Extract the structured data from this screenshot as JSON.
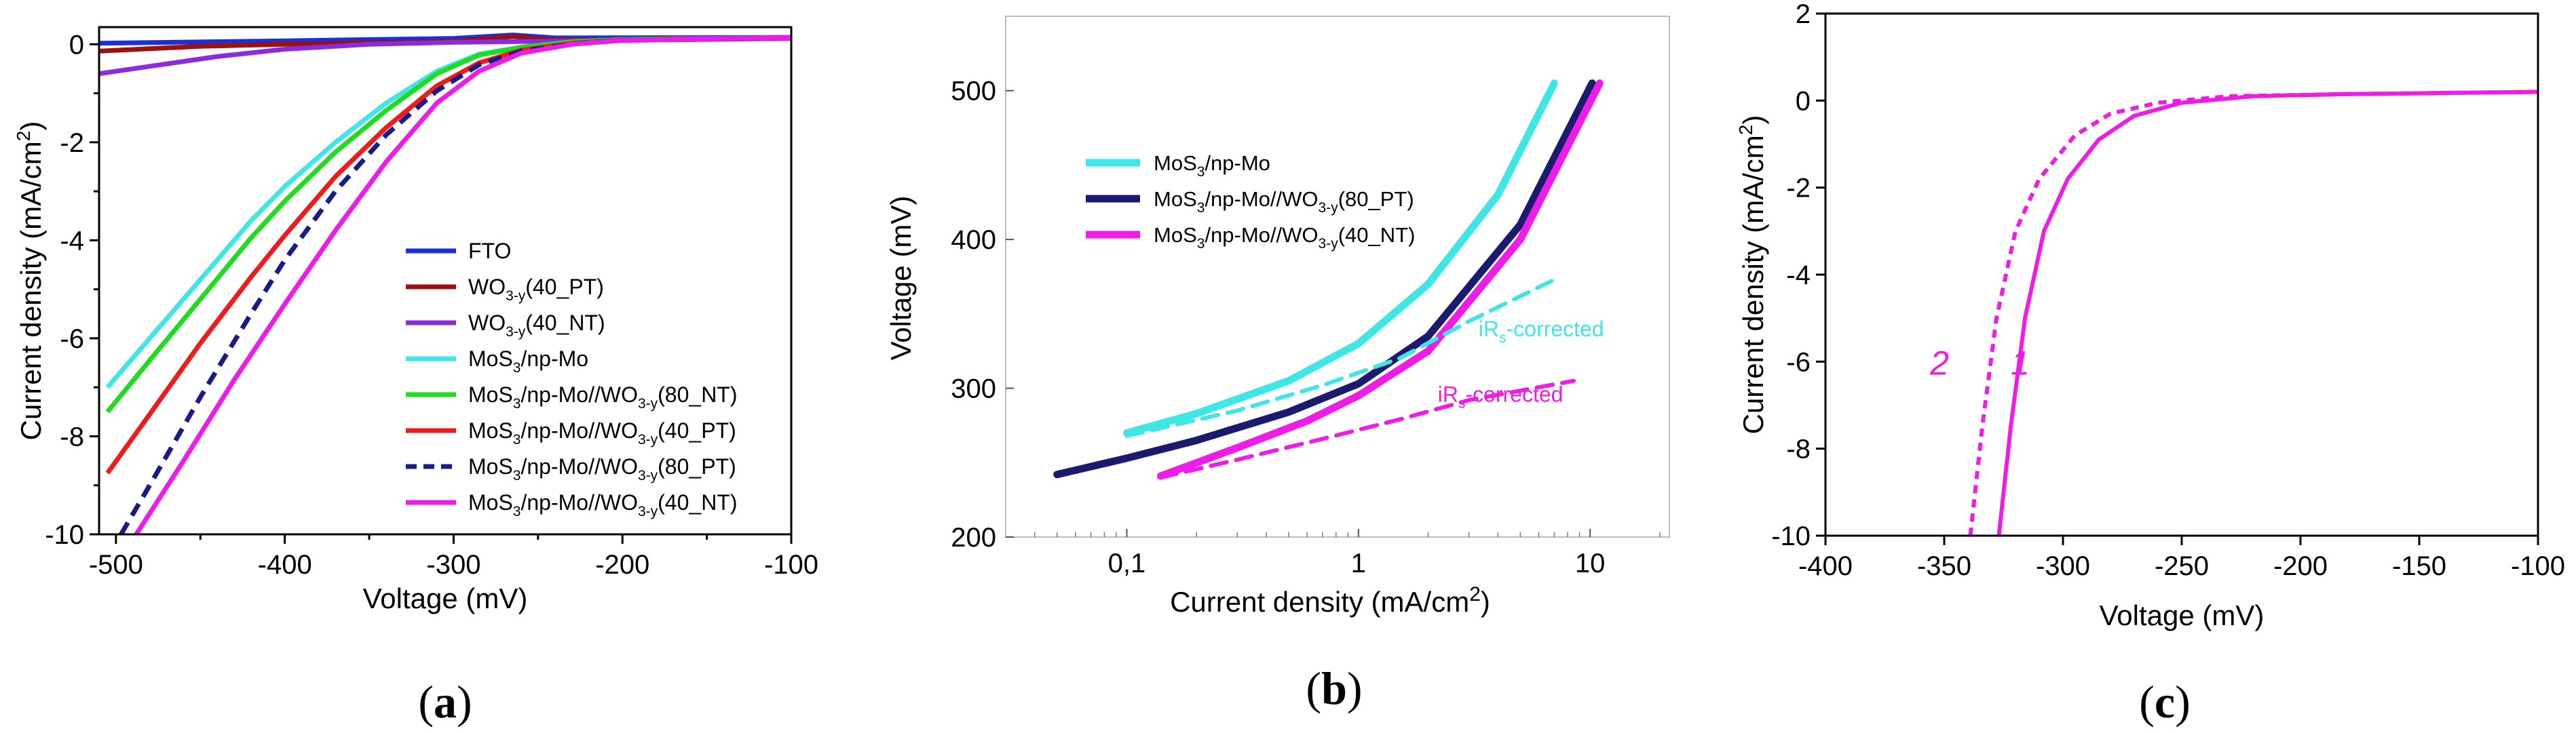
{
  "panel_labels": [
    "(a)",
    "(b)",
    "(c)"
  ],
  "chart_data": [
    {
      "type": "line",
      "panel": "(a)",
      "xlabel": "Voltage (mV)",
      "ylabel": "Current density (mA/cm²)",
      "xlim": [
        -510,
        -100
      ],
      "ylim": [
        -10,
        0.35
      ],
      "xticks": [
        -500,
        -400,
        -300,
        -200,
        -100
      ],
      "yticks": [
        0,
        -2,
        -4,
        -6,
        -8,
        -10
      ],
      "xtick_labels": [
        "-500",
        "-400",
        "-300",
        "-200",
        "-100"
      ],
      "ytick_labels": [
        "0",
        "-2",
        "-4",
        "-6",
        "-8",
        "-10"
      ],
      "legend_location": "right",
      "series": [
        {
          "name": "FTO",
          "base": "FTO",
          "sub": "",
          "tail": "",
          "color": "#1c2fd8",
          "dash": false,
          "points": [
            [
              -510,
              0.02
            ],
            [
              -400,
              0.07
            ],
            [
              -300,
              0.12
            ],
            [
              -265,
              0.19
            ],
            [
              -240,
              0.13
            ],
            [
              -100,
              0.14
            ]
          ]
        },
        {
          "name": "WO3-y(40_PT)",
          "base": "WO",
          "sub": "3-y",
          "tail": "(40_PT)",
          "color": "#9c1010",
          "dash": false,
          "points": [
            [
              -510,
              -0.14
            ],
            [
              -450,
              -0.04
            ],
            [
              -400,
              0.0
            ],
            [
              -300,
              0.06
            ],
            [
              -265,
              0.16
            ],
            [
              -240,
              0.08
            ],
            [
              -100,
              0.14
            ]
          ]
        },
        {
          "name": "WO3-y(40_NT)",
          "base": "WO",
          "sub": "3-y",
          "tail": "(40_NT)",
          "color": "#8a2be2",
          "dash": false,
          "points": [
            [
              -510,
              -0.6
            ],
            [
              -480,
              -0.45
            ],
            [
              -440,
              -0.25
            ],
            [
              -400,
              -0.1
            ],
            [
              -350,
              0.0
            ],
            [
              -300,
              0.04
            ],
            [
              -200,
              0.08
            ],
            [
              -100,
              0.12
            ]
          ]
        },
        {
          "name": "MoS3/np-Mo",
          "base": "MoS",
          "sub": "3",
          "tail": "/np-Mo",
          "color": "#3fe6e6",
          "dash": false,
          "points": [
            [
              -505,
              -7.0
            ],
            [
              -480,
              -6.0
            ],
            [
              -450,
              -4.8
            ],
            [
              -420,
              -3.6
            ],
            [
              -400,
              -2.9
            ],
            [
              -370,
              -2.0
            ],
            [
              -340,
              -1.2
            ],
            [
              -310,
              -0.55
            ],
            [
              -285,
              -0.2
            ],
            [
              -260,
              -0.06
            ],
            [
              -230,
              0.05
            ],
            [
              -200,
              0.1
            ],
            [
              -100,
              0.14
            ]
          ]
        },
        {
          "name": "MoS3/np-Mo//WO3-y(80_NT)",
          "base": "MoS",
          "sub": "3",
          "tail": "/np-Mo//WO",
          "sub2": "3-y",
          "tail2": "(80_NT)",
          "color": "#1fdc1f",
          "dash": false,
          "points": [
            [
              -505,
              -7.5
            ],
            [
              -480,
              -6.45
            ],
            [
              -450,
              -5.2
            ],
            [
              -420,
              -3.95
            ],
            [
              -400,
              -3.2
            ],
            [
              -370,
              -2.2
            ],
            [
              -340,
              -1.35
            ],
            [
              -310,
              -0.6
            ],
            [
              -285,
              -0.22
            ],
            [
              -260,
              -0.06
            ],
            [
              -230,
              0.05
            ],
            [
              -200,
              0.1
            ],
            [
              -100,
              0.14
            ]
          ]
        },
        {
          "name": "MoS3/np-Mo//WO3-y(40_PT)",
          "base": "MoS",
          "sub": "3",
          "tail": "/np-Mo//WO",
          "sub2": "3-y",
          "tail2": "(40_PT)",
          "color": "#ee1c1c",
          "dash": false,
          "points": [
            [
              -505,
              -8.75
            ],
            [
              -480,
              -7.55
            ],
            [
              -450,
              -6.1
            ],
            [
              -420,
              -4.75
            ],
            [
              -400,
              -3.9
            ],
            [
              -370,
              -2.7
            ],
            [
              -340,
              -1.7
            ],
            [
              -310,
              -0.85
            ],
            [
              -285,
              -0.38
            ],
            [
              -260,
              -0.12
            ],
            [
              -230,
              0.02
            ],
            [
              -200,
              0.09
            ],
            [
              -100,
              0.14
            ]
          ]
        },
        {
          "name": "MoS3/np-Mo//WO3-y(80_PT)",
          "base": "MoS",
          "sub": "3",
          "tail": "/np-Mo//WO",
          "sub2": "3-y",
          "tail2": "(80_PT)",
          "color": "#1a1a8a",
          "dash": true,
          "points": [
            [
              -497,
              -10.0
            ],
            [
              -480,
              -9.0
            ],
            [
              -450,
              -7.2
            ],
            [
              -420,
              -5.5
            ],
            [
              -400,
              -4.4
            ],
            [
              -370,
              -3.0
            ],
            [
              -340,
              -1.85
            ],
            [
              -310,
              -0.95
            ],
            [
              -285,
              -0.42
            ],
            [
              -260,
              -0.14
            ],
            [
              -230,
              0.01
            ],
            [
              -200,
              0.08
            ],
            [
              -100,
              0.14
            ]
          ]
        },
        {
          "name": "MoS3/np-Mo//WO3-y(40_NT)",
          "base": "MoS",
          "sub": "3",
          "tail": "/np-Mo//WO",
          "sub2": "3-y",
          "tail2": "(40_NT)",
          "color": "#ee1ce6",
          "dash": false,
          "points": [
            [
              -488,
              -10.0
            ],
            [
              -460,
              -8.5
            ],
            [
              -430,
              -6.85
            ],
            [
              -400,
              -5.3
            ],
            [
              -370,
              -3.8
            ],
            [
              -340,
              -2.4
            ],
            [
              -310,
              -1.2
            ],
            [
              -285,
              -0.55
            ],
            [
              -260,
              -0.18
            ],
            [
              -230,
              0.0
            ],
            [
              -200,
              0.08
            ],
            [
              -100,
              0.14
            ]
          ]
        }
      ]
    },
    {
      "type": "line",
      "panel": "(b)",
      "xscale": "log",
      "xlabel": "Current density (mA/cm²)",
      "ylabel": "Voltage (mV)",
      "xlim": [
        0.03,
        22
      ],
      "ylim": [
        200,
        550
      ],
      "xticks": [
        0.1,
        1,
        10
      ],
      "xtick_labels": [
        "0,1",
        "1",
        "10"
      ],
      "yticks": [
        200,
        300,
        400,
        500
      ],
      "ytick_labels": [
        "200",
        "300",
        "400",
        "500"
      ],
      "legend_location": "top-left",
      "series": [
        {
          "name": "MoS3/np-Mo",
          "base": "MoS",
          "sub": "3",
          "tail": "/np-Mo",
          "color": "#3fe6e6",
          "dash": false,
          "in_legend": true,
          "points": [
            [
              0.1,
              270
            ],
            [
              0.2,
              283
            ],
            [
              0.5,
              305
            ],
            [
              1,
              330
            ],
            [
              2,
              370
            ],
            [
              4,
              430
            ],
            [
              7,
              505
            ]
          ]
        },
        {
          "name": "MoS3/np-Mo//WO3-y(80_PT)",
          "base": "MoS",
          "sub": "3",
          "tail": "/np-Mo//WO",
          "sub2": "3-y",
          "tail2": "(80_PT)",
          "color": "#1a1a6e",
          "dash": false,
          "in_legend": true,
          "points": [
            [
              0.05,
              242
            ],
            [
              0.1,
              253
            ],
            [
              0.2,
              265
            ],
            [
              0.5,
              284
            ],
            [
              1,
              303
            ],
            [
              2,
              335
            ],
            [
              5,
              410
            ],
            [
              10.2,
              505
            ]
          ]
        },
        {
          "name": "MoS3/np-Mo//WO3-y(40_NT)",
          "base": "MoS",
          "sub": "3",
          "tail": "/np-Mo//WO",
          "sub2": "3-y",
          "tail2": "(40_NT)",
          "color": "#ee1ce6",
          "dash": false,
          "in_legend": true,
          "points": [
            [
              0.14,
              241
            ],
            [
              0.3,
              260
            ],
            [
              0.6,
              278
            ],
            [
              1,
              295
            ],
            [
              2,
              325
            ],
            [
              5,
              400
            ],
            [
              11,
              505
            ]
          ]
        },
        {
          "name": "MoS3/np-Mo iRs-corrected",
          "color": "#3fe6e6",
          "dash": true,
          "in_legend": false,
          "points": [
            [
              0.1,
              268
            ],
            [
              0.3,
              285
            ],
            [
              0.7,
              302
            ],
            [
              1.5,
              320
            ],
            [
              3,
              345
            ],
            [
              7,
              373
            ]
          ]
        },
        {
          "name": "MoS3/np-Mo//WO3-y(40_NT) iRs-corrected",
          "color": "#ee1ce6",
          "dash": true,
          "in_legend": false,
          "points": [
            [
              0.14,
              240
            ],
            [
              0.3,
              252
            ],
            [
              0.7,
              266
            ],
            [
              1.5,
              279
            ],
            [
              3,
              292
            ],
            [
              8.5,
              305
            ]
          ]
        }
      ],
      "annotations": [
        {
          "text_main": "iR",
          "text_sub": "s",
          "text_tail": "-corrected",
          "color": "#3fe6e6",
          "x": 3.3,
          "y": 335
        },
        {
          "text_main": "iR",
          "text_sub": "s",
          "text_tail": "-corrected",
          "color": "#ee1ce6",
          "x": 2.2,
          "y": 291
        }
      ]
    },
    {
      "type": "line",
      "panel": "(c)",
      "xlabel": "Voltage (mV)",
      "ylabel": "Current density (mA/cm²)",
      "xlim": [
        -400,
        -100
      ],
      "ylim": [
        -10,
        2
      ],
      "xticks": [
        -400,
        -350,
        -300,
        -250,
        -200,
        -150,
        -100
      ],
      "xtick_labels": [
        "-400",
        "-350",
        "-300",
        "-250",
        "-200",
        "-150",
        "-100"
      ],
      "yticks": [
        2,
        0,
        -2,
        -4,
        -6,
        -8,
        -10
      ],
      "ytick_labels": [
        "2",
        "0",
        "-2",
        "-4",
        "-6",
        "-8",
        "-10"
      ],
      "series": [
        {
          "name": "1",
          "color": "#ee1ce6",
          "dash": false,
          "points": [
            [
              -327,
              -10.0
            ],
            [
              -322,
              -7.5
            ],
            [
              -316,
              -5.0
            ],
            [
              -308,
              -3.0
            ],
            [
              -298,
              -1.8
            ],
            [
              -285,
              -0.9
            ],
            [
              -270,
              -0.35
            ],
            [
              -250,
              -0.05
            ],
            [
              -220,
              0.1
            ],
            [
              -180,
              0.15
            ],
            [
              -100,
              0.2
            ]
          ]
        },
        {
          "name": "2",
          "color": "#ee1ce6",
          "dash": true,
          "points": [
            [
              -339,
              -10.0
            ],
            [
              -334,
              -7.5
            ],
            [
              -328,
              -5.0
            ],
            [
              -320,
              -3.0
            ],
            [
              -310,
              -1.8
            ],
            [
              -295,
              -0.8
            ],
            [
              -280,
              -0.3
            ],
            [
              -260,
              -0.05
            ],
            [
              -230,
              0.1
            ],
            [
              -180,
              0.15
            ],
            [
              -100,
              0.2
            ]
          ]
        }
      ],
      "curve_labels": [
        {
          "text": "1",
          "x": -318,
          "y": -6.3
        },
        {
          "text": "2",
          "x": -352,
          "y": -6.3
        }
      ]
    }
  ]
}
